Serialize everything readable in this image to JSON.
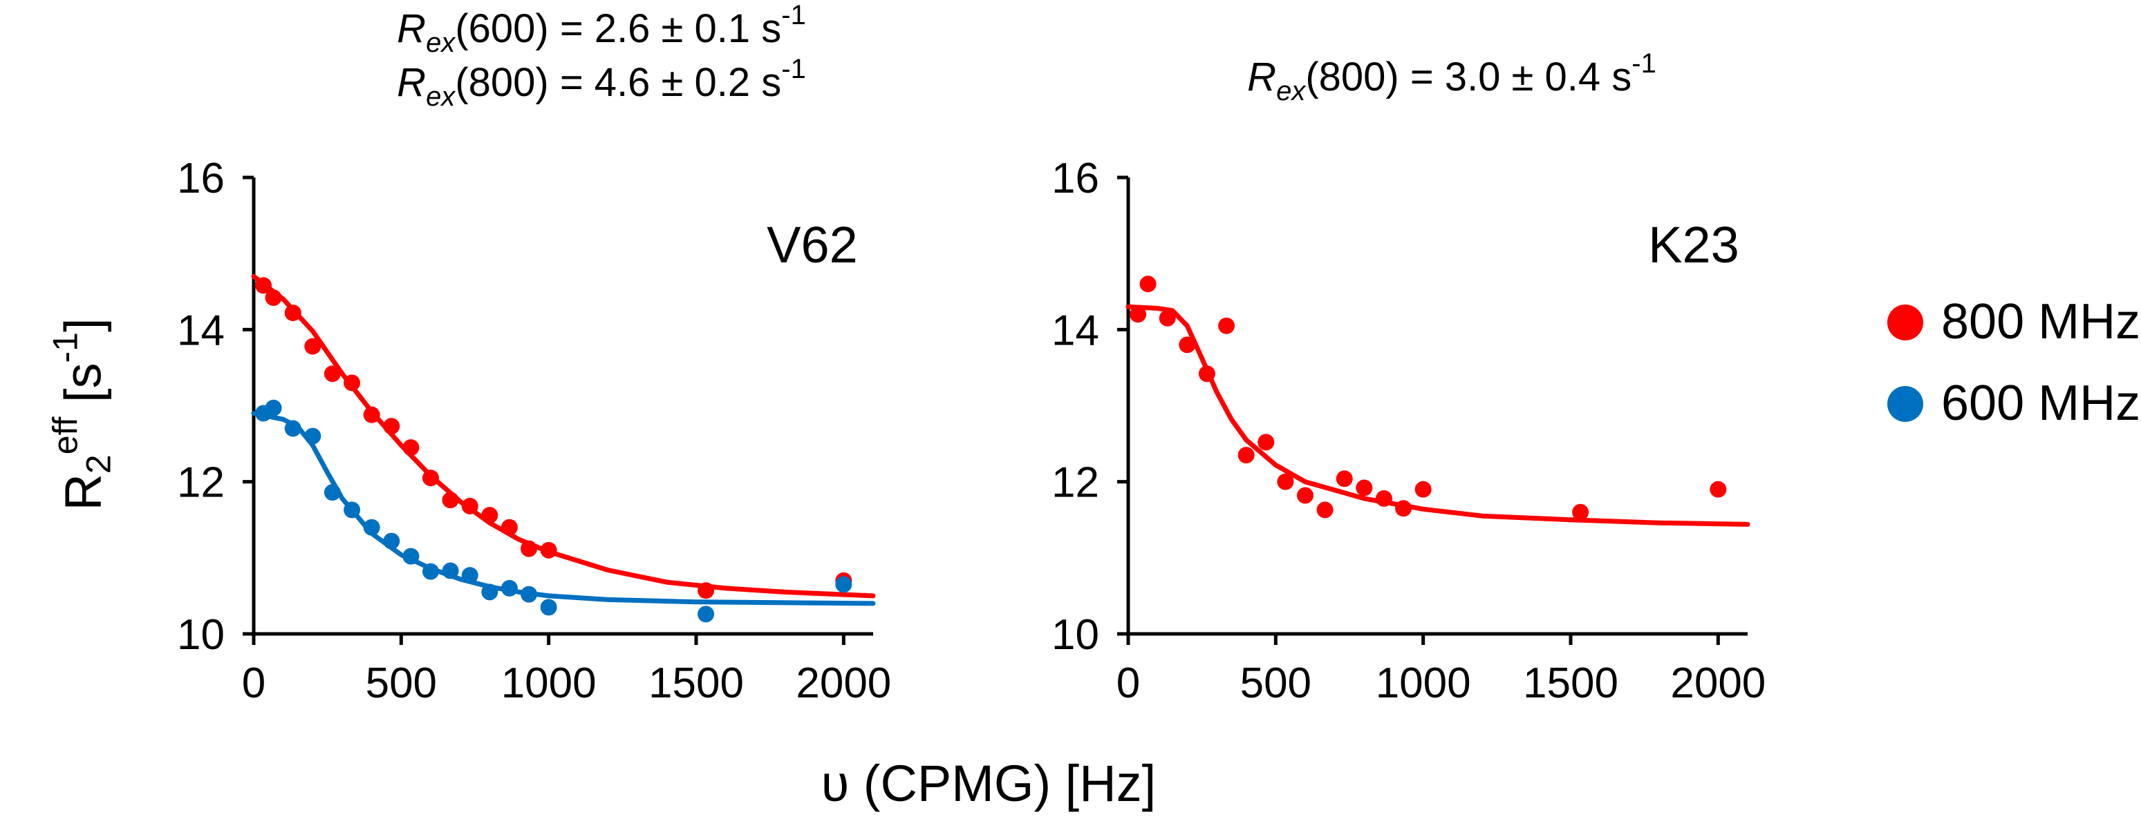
{
  "annotations": {
    "left_line1": {
      "symbol": "R",
      "sub": "ex",
      "rest": "(600) = 2.6 ± 0.1 s",
      "sup": "-1"
    },
    "left_line2": {
      "symbol": "R",
      "sub": "ex",
      "rest": "(800) = 4.6 ± 0.2 s",
      "sup": "-1"
    },
    "right_line1": {
      "symbol": "R",
      "sub": "ex",
      "rest": "(800) = 3.0 ± 0.4 s",
      "sup": "-1"
    }
  },
  "y_axis_label": {
    "base": "R",
    "sub": "2",
    "sup": "eff",
    "rest": " [s",
    "unit_sup": "-1",
    "close": "]"
  },
  "x_axis_label": "υ (CPMG) [Hz]",
  "legend": {
    "items": [
      {
        "label": "800 MHz",
        "color": "#ff0000"
      },
      {
        "label": "600 MHz",
        "color": "#0070c0"
      }
    ]
  },
  "chart_data": [
    {
      "type": "scatter",
      "panel_label": "V62",
      "xlim": [
        0,
        2100
      ],
      "ylim": [
        10,
        16
      ],
      "xticks": [
        "0",
        "500",
        "1000",
        "1500",
        "2000"
      ],
      "xtick_values": [
        0,
        500,
        1000,
        1500,
        2000
      ],
      "yticks": [
        "10",
        "12",
        "14",
        "16"
      ],
      "ytick_values": [
        10,
        12,
        14,
        16
      ],
      "series": [
        {
          "name": "800 MHz",
          "color": "#ff0000",
          "points": [
            [
              33,
              14.58
            ],
            [
              67,
              14.42
            ],
            [
              133,
              14.22
            ],
            [
              200,
              13.78
            ],
            [
              267,
              13.42
            ],
            [
              333,
              13.3
            ],
            [
              400,
              12.88
            ],
            [
              467,
              12.73
            ],
            [
              533,
              12.45
            ],
            [
              600,
              12.05
            ],
            [
              667,
              11.76
            ],
            [
              733,
              11.68
            ],
            [
              800,
              11.56
            ],
            [
              867,
              11.4
            ],
            [
              933,
              11.12
            ],
            [
              1000,
              11.1
            ],
            [
              1533,
              10.57
            ],
            [
              2000,
              10.7
            ]
          ],
          "fit": [
            [
              0,
              14.7
            ],
            [
              100,
              14.4
            ],
            [
              200,
              13.98
            ],
            [
              300,
              13.42
            ],
            [
              400,
              12.92
            ],
            [
              500,
              12.48
            ],
            [
              600,
              12.08
            ],
            [
              700,
              11.74
            ],
            [
              800,
              11.46
            ],
            [
              900,
              11.24
            ],
            [
              1000,
              11.08
            ],
            [
              1200,
              10.84
            ],
            [
              1400,
              10.68
            ],
            [
              1600,
              10.6
            ],
            [
              1800,
              10.55
            ],
            [
              2100,
              10.5
            ]
          ]
        },
        {
          "name": "600 MHz",
          "color": "#0070c0",
          "points": [
            [
              33,
              12.9
            ],
            [
              67,
              12.97
            ],
            [
              133,
              12.7
            ],
            [
              200,
              12.6
            ],
            [
              267,
              11.86
            ],
            [
              333,
              11.63
            ],
            [
              400,
              11.4
            ],
            [
              467,
              11.22
            ],
            [
              533,
              11.02
            ],
            [
              600,
              10.82
            ],
            [
              667,
              10.83
            ],
            [
              733,
              10.77
            ],
            [
              800,
              10.55
            ],
            [
              867,
              10.6
            ],
            [
              933,
              10.52
            ],
            [
              1000,
              10.35
            ],
            [
              1533,
              10.26
            ],
            [
              2000,
              10.65
            ]
          ],
          "fit": [
            [
              0,
              12.9
            ],
            [
              100,
              12.82
            ],
            [
              150,
              12.72
            ],
            [
              200,
              12.48
            ],
            [
              250,
              12.12
            ],
            [
              300,
              11.78
            ],
            [
              400,
              11.32
            ],
            [
              500,
              11.04
            ],
            [
              600,
              10.86
            ],
            [
              700,
              10.72
            ],
            [
              800,
              10.62
            ],
            [
              900,
              10.55
            ],
            [
              1000,
              10.5
            ],
            [
              1200,
              10.45
            ],
            [
              1500,
              10.42
            ],
            [
              2100,
              10.4
            ]
          ]
        }
      ]
    },
    {
      "type": "scatter",
      "panel_label": "K23",
      "xlim": [
        0,
        2100
      ],
      "ylim": [
        10,
        16
      ],
      "xticks": [
        "0",
        "500",
        "1000",
        "1500",
        "2000"
      ],
      "xtick_values": [
        0,
        500,
        1000,
        1500,
        2000
      ],
      "yticks": [
        "10",
        "12",
        "14",
        "16"
      ],
      "ytick_values": [
        10,
        12,
        14,
        16
      ],
      "series": [
        {
          "name": "800 MHz",
          "color": "#ff0000",
          "points": [
            [
              33,
              14.2
            ],
            [
              67,
              14.6
            ],
            [
              133,
              14.15
            ],
            [
              200,
              13.8
            ],
            [
              267,
              13.42
            ],
            [
              333,
              14.05
            ],
            [
              400,
              12.35
            ],
            [
              467,
              12.52
            ],
            [
              533,
              12.0
            ],
            [
              600,
              11.82
            ],
            [
              667,
              11.63
            ],
            [
              733,
              12.04
            ],
            [
              800,
              11.92
            ],
            [
              867,
              11.78
            ],
            [
              933,
              11.65
            ],
            [
              1000,
              11.9
            ],
            [
              1533,
              11.6
            ],
            [
              2000,
              11.9
            ]
          ],
          "fit": [
            [
              0,
              14.3
            ],
            [
              100,
              14.28
            ],
            [
              150,
              14.25
            ],
            [
              200,
              14.05
            ],
            [
              250,
              13.62
            ],
            [
              300,
              13.18
            ],
            [
              350,
              12.82
            ],
            [
              400,
              12.55
            ],
            [
              500,
              12.22
            ],
            [
              600,
              12.0
            ],
            [
              800,
              11.78
            ],
            [
              1000,
              11.64
            ],
            [
              1200,
              11.55
            ],
            [
              1500,
              11.5
            ],
            [
              1800,
              11.46
            ],
            [
              2100,
              11.44
            ]
          ]
        }
      ]
    }
  ]
}
